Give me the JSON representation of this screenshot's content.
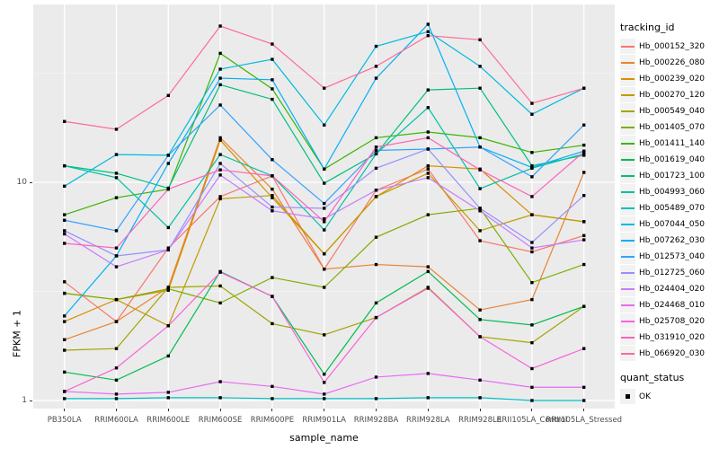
{
  "figure": {
    "background": "#FFFFFF",
    "panel_background": "#EBEBEB",
    "grid_major_color": "#FFFFFF",
    "grid_minor_color": "#F2F2F2",
    "tick_mark_color": "#333333",
    "tick_label_color": "#4D4D4D",
    "text_color": "#000000",
    "point_color": "#000000",
    "legend_key_background": "#F2F2F2"
  },
  "chart_data": {
    "type": "line",
    "title": "",
    "xlabel": "sample_name",
    "ylabel": "FPKM + 1",
    "y_scale": "log10",
    "y_tick_values": [
      10,
      1
    ],
    "y_tick_labels": [
      "10",
      "1"
    ],
    "y_minor_values": [
      3.162,
      31.62
    ],
    "ylim": [
      0.93,
      65
    ],
    "legend_title": "tracking_id",
    "legend_position": "right",
    "grid": true,
    "marker": "black-square",
    "categories": [
      "PB350LA",
      "RRIM600LA",
      "RRIM600LE",
      "RRIM600SE",
      "RRIM600PE",
      "RRIM901LA",
      "RRIM928BA",
      "RRIM928LA",
      "RRIM928LE",
      "RRII105LA_Control",
      "RRII105LA_Stressed"
    ],
    "series": [
      {
        "name": "Hb_000152_320",
        "color": "#F8766D",
        "values": [
          3.5,
          2.3,
          5.0,
          8.6,
          10.7,
          4.0,
          9.2,
          11.5,
          5.4,
          4.8,
          5.7
        ]
      },
      {
        "name": "Hb_000226_080",
        "color": "#EA8331",
        "values": [
          1.9,
          2.3,
          3.3,
          16.0,
          9.3,
          4.0,
          4.2,
          4.1,
          2.6,
          2.9,
          11.1
        ]
      },
      {
        "name": "Hb_000239_020",
        "color": "#D89000",
        "values": [
          2.3,
          2.9,
          3.2,
          15.6,
          8.5,
          4.7,
          8.6,
          11.9,
          11.5,
          7.1,
          6.6
        ]
      },
      {
        "name": "Hb_000270_120",
        "color": "#C09B00",
        "values": [
          3.1,
          2.9,
          2.2,
          8.4,
          8.7,
          4.7,
          8.6,
          11.0,
          6.0,
          7.1,
          6.6
        ]
      },
      {
        "name": "Hb_000549_040",
        "color": "#A3A500",
        "values": [
          1.7,
          1.73,
          3.3,
          3.35,
          2.25,
          2.0,
          2.4,
          3.3,
          1.96,
          1.84,
          2.7
        ]
      },
      {
        "name": "Hb_001405_070",
        "color": "#7CAE00",
        "values": [
          3.1,
          2.9,
          3.25,
          2.8,
          3.66,
          3.3,
          5.6,
          7.1,
          7.6,
          3.47,
          4.2
        ]
      },
      {
        "name": "Hb_001411_140",
        "color": "#39B600",
        "values": [
          7.1,
          8.5,
          9.3,
          39.0,
          26.8,
          11.5,
          16.0,
          17.0,
          16.0,
          13.7,
          14.8
        ]
      },
      {
        "name": "Hb_001619_040",
        "color": "#00BB4E",
        "values": [
          1.35,
          1.24,
          1.6,
          3.9,
          3.0,
          1.32,
          2.8,
          3.9,
          2.35,
          2.22,
          2.7
        ]
      },
      {
        "name": "Hb_001723_100",
        "color": "#00BF7D",
        "values": [
          11.9,
          11.0,
          9.4,
          28.0,
          24.0,
          9.9,
          13.5,
          26.5,
          27.0,
          11.9,
          13.3
        ]
      },
      {
        "name": "Hb_004993_060",
        "color": "#00C1A3",
        "values": [
          11.9,
          10.5,
          6.2,
          13.4,
          10.7,
          6.05,
          13.5,
          22.0,
          9.35,
          11.6,
          13.5
        ]
      },
      {
        "name": "Hb_005489_070",
        "color": "#00BFC4",
        "values": [
          1.02,
          1.02,
          1.03,
          1.03,
          1.02,
          1.02,
          1.02,
          1.03,
          1.03,
          1.0,
          1.0
        ]
      },
      {
        "name": "Hb_007044_050",
        "color": "#00BAE0",
        "values": [
          9.6,
          13.4,
          13.3,
          33.0,
          36.6,
          18.3,
          42.0,
          49.0,
          34.0,
          20.5,
          27.0
        ]
      },
      {
        "name": "Hb_007262_030",
        "color": "#00B0F6",
        "values": [
          2.44,
          4.6,
          12.2,
          30.0,
          29.5,
          11.5,
          30.0,
          53.0,
          14.5,
          11.7,
          13.9
        ]
      },
      {
        "name": "Hb_012573_040",
        "color": "#35A2FF",
        "values": [
          6.7,
          6.0,
          13.3,
          22.6,
          12.7,
          8.0,
          14.0,
          14.2,
          14.5,
          10.6,
          18.3
        ]
      },
      {
        "name": "Hb_012725_060",
        "color": "#9590FF",
        "values": [
          6.0,
          4.6,
          4.9,
          12.2,
          7.7,
          7.6,
          11.6,
          14.2,
          7.6,
          5.3,
          8.7
        ]
      },
      {
        "name": "Hb_024404_020",
        "color": "#C77CFF",
        "values": [
          5.8,
          4.1,
          4.9,
          10.8,
          7.4,
          6.8,
          9.2,
          10.5,
          7.4,
          5.0,
          5.45
        ]
      },
      {
        "name": "Hb_024468_010",
        "color": "#E76BF3",
        "values": [
          1.1,
          1.07,
          1.09,
          1.22,
          1.16,
          1.07,
          1.28,
          1.33,
          1.24,
          1.15,
          1.15
        ]
      },
      {
        "name": "Hb_025708_020",
        "color": "#FA62DB",
        "values": [
          1.1,
          1.41,
          2.2,
          3.87,
          3.0,
          1.21,
          2.4,
          3.27,
          1.96,
          1.4,
          1.73
        ]
      },
      {
        "name": "Hb_031910_020",
        "color": "#FF62BC",
        "values": [
          5.25,
          5.0,
          9.3,
          11.4,
          10.7,
          6.6,
          14.5,
          16.0,
          11.4,
          8.6,
          13.8
        ]
      },
      {
        "name": "Hb_066920_030",
        "color": "#FF6A98",
        "values": [
          19.0,
          17.5,
          25.0,
          52.0,
          43.0,
          27.0,
          34.0,
          47.0,
          45.0,
          23.0,
          27.0
        ]
      }
    ],
    "quant_status": {
      "title": "quant_status",
      "items": [
        {
          "label": "OK",
          "marker": "black-square"
        }
      ]
    }
  }
}
